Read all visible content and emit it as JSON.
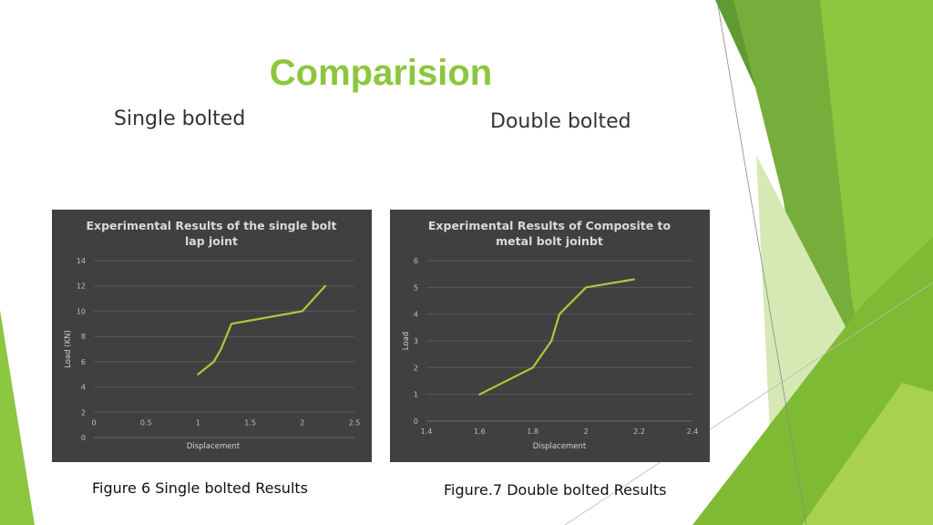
{
  "slide": {
    "title": "Comparision",
    "left_heading": "Single bolted",
    "right_heading": "Double bolted",
    "left_caption": "Figure 6 Single bolted Results",
    "right_caption": "Figure.7 Double bolted Results",
    "accent_color": "#8cc63e"
  },
  "chart_data": [
    {
      "type": "line",
      "title": "Experimental Results of the single bolt lap joint",
      "title_lines": [
        "Experimental Results of the single bolt",
        "lap joint"
      ],
      "xlabel": "Displacement",
      "ylabel": "Load (KN)",
      "xlim": [
        0,
        2.5
      ],
      "ylim": [
        0,
        14
      ],
      "x_ticks": [
        "0",
        "0.5",
        "1",
        "1.5",
        "2",
        "2.5"
      ],
      "y_ticks": [
        "0",
        "2",
        "4",
        "6",
        "8",
        "10",
        "12",
        "14"
      ],
      "grid": true,
      "series": [
        {
          "color": "#a6cc3a",
          "x": [
            1.0,
            1.15,
            1.22,
            1.32,
            2.0,
            2.22
          ],
          "y": [
            5,
            6,
            7,
            9,
            10,
            12
          ]
        }
      ]
    },
    {
      "type": "line",
      "title": "Experimental Results of Composite to metal bolt joinbt",
      "title_lines": [
        "Experimental  Results of Composite to",
        "metal bolt joinbt"
      ],
      "xlabel": "Displacement",
      "ylabel": "Load",
      "xlim": [
        1.4,
        2.4
      ],
      "ylim": [
        0,
        6
      ],
      "x_ticks": [
        "1.4",
        "1.6",
        "1.8",
        "2",
        "2.2",
        "2.4"
      ],
      "y_ticks": [
        "0",
        "1",
        "2",
        "3",
        "4",
        "5",
        "6"
      ],
      "grid": true,
      "series": [
        {
          "color": "#a6cc3a",
          "x": [
            1.6,
            1.8,
            1.87,
            1.9,
            2.0,
            2.18
          ],
          "y": [
            1,
            2,
            3,
            4,
            5,
            5.3
          ]
        }
      ]
    }
  ]
}
